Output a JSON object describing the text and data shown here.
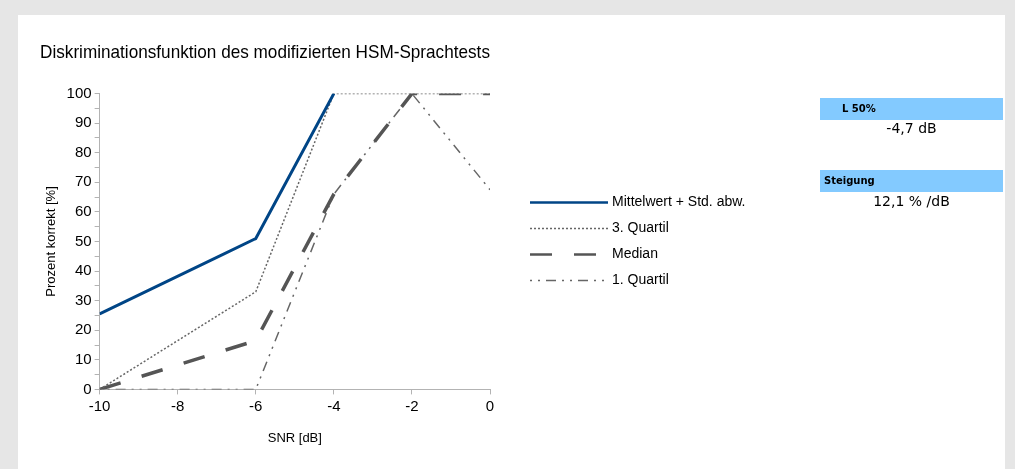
{
  "chart_data": {
    "type": "line",
    "title": "Diskriminationsfunktion des modifizierten HSM-Sprachtests",
    "xlabel": "SNR [dB]",
    "ylabel": "Prozent korrekt [%]",
    "x": [
      -10,
      -6,
      -4,
      -2,
      0
    ],
    "series": [
      {
        "name": "Mittelwert + Std. abw.",
        "color": "#004586",
        "line_style": "solid",
        "values": [
          25.5,
          51,
          100,
          null,
          null
        ]
      },
      {
        "name": "3. Quartil",
        "color": "#666666",
        "line_style": "dotted",
        "values": [
          0,
          33,
          100,
          100,
          100
        ]
      },
      {
        "name": "Median",
        "color": "#555555",
        "line_style": "dashed",
        "values": [
          0,
          16.5,
          66,
          100,
          100
        ]
      },
      {
        "name": "1. Quartil",
        "color": "#666666",
        "line_style": "dashdot",
        "values": [
          0,
          0,
          66,
          100,
          67.5
        ]
      }
    ],
    "xlim": [
      -10,
      0
    ],
    "xticks": [
      -10,
      -8,
      -6,
      -4,
      -2,
      0
    ],
    "ylim": [
      0,
      100
    ],
    "yticks": [
      0,
      {
        "value": 5,
        "label": null
      },
      10,
      {
        "value": 15,
        "label": null
      },
      20,
      {
        "value": 25,
        "label": null
      },
      30,
      {
        "value": 35,
        "label": null
      },
      40,
      {
        "value": 45,
        "label": null
      },
      50,
      {
        "value": 55,
        "label": null
      },
      60,
      {
        "value": 65,
        "label": null
      },
      70,
      {
        "value": 75,
        "label": null
      },
      80,
      {
        "value": 85,
        "label": null
      },
      90,
      {
        "value": 95,
        "label": null
      },
      100
    ],
    "grid": false,
    "legend": "right",
    "marker": "none",
    "annotations": [
      "L 50%",
      "-4,7 dB",
      "Steigung",
      "12,1 % /dB"
    ]
  }
}
